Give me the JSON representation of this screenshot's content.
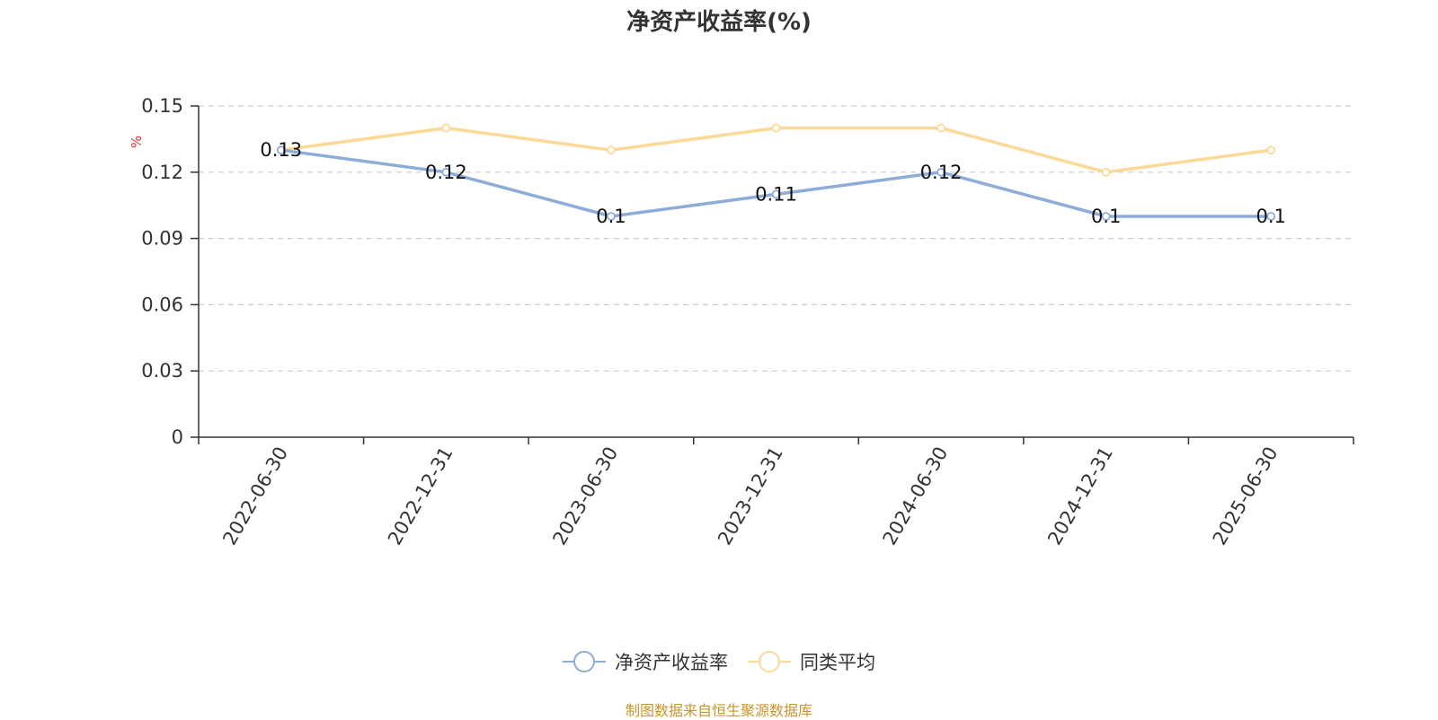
{
  "chart_data": {
    "type": "line",
    "title": "净资产收益率(%)",
    "ylabel": "%",
    "xlabel": "",
    "categories": [
      "2022-06-30",
      "2022-12-31",
      "2023-06-30",
      "2023-12-31",
      "2024-06-30",
      "2024-12-31",
      "2025-06-30"
    ],
    "ylim": [
      0,
      0.15
    ],
    "yticks": [
      "0",
      "0.03",
      "0.06",
      "0.09",
      "0.12",
      "0.15"
    ],
    "grid": true,
    "legend_position": "bottom",
    "series": [
      {
        "name": "净资产收益率",
        "values": [
          0.13,
          0.12,
          0.1,
          0.11,
          0.12,
          0.1,
          0.1
        ],
        "color": "#8eacd8",
        "data_labels": [
          "0.13",
          "0.12",
          "0.1",
          "0.11",
          "0.12",
          "0.1",
          "0.1"
        ]
      },
      {
        "name": "同类平均",
        "values": [
          0.13,
          0.14,
          0.13,
          0.14,
          0.14,
          0.12,
          0.13
        ],
        "color": "#fcd996"
      }
    ]
  },
  "unit_color": "#e03131",
  "source_note": "制图数据来自恒生聚源数据库",
  "source_color": "#c8962a"
}
